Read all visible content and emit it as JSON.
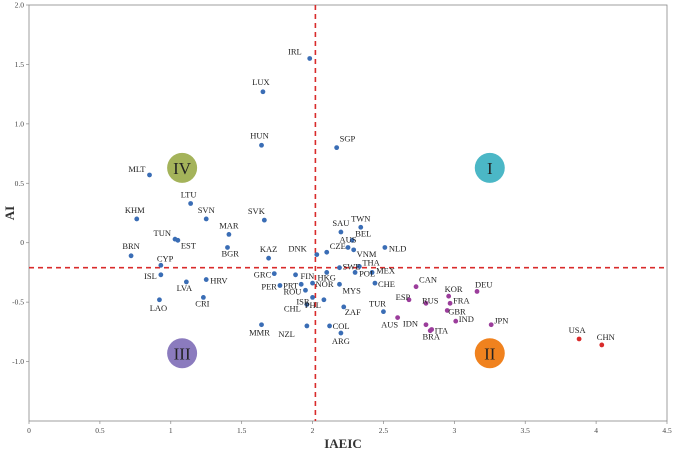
{
  "chart_data": {
    "type": "scatter",
    "title": "",
    "xlabel": "IAEIC",
    "ylabel": "AI",
    "xlim": [
      0,
      4.5
    ],
    "ylim": [
      -1.5,
      2.0
    ],
    "xticks": [
      "0",
      "0.5",
      "1",
      "1.5",
      "2",
      "2.5",
      "3",
      "3.5",
      "4",
      "4.5"
    ],
    "yticks": [
      "-1.0",
      "-0.5",
      "0",
      "0.5",
      "1.0",
      "1.5",
      "2.0"
    ],
    "xtick_values": [
      0,
      0.5,
      1,
      1.5,
      2,
      2.5,
      3,
      3.5,
      4,
      4.5
    ],
    "ytick_values": [
      -1.0,
      -0.5,
      0,
      0.5,
      1.0,
      1.5,
      2.0
    ],
    "grid": false,
    "reference_lines": {
      "x": 2.02,
      "y": -0.21
    },
    "quadrants": [
      {
        "label": "I",
        "x": 3.25,
        "y": 0.63,
        "color": "#4bb7c6"
      },
      {
        "label": "II",
        "x": 3.25,
        "y": -0.93,
        "color": "#f0821e"
      },
      {
        "label": "III",
        "x": 1.08,
        "y": -0.93,
        "color": "#8b7bbe"
      },
      {
        "label": "IV",
        "x": 1.08,
        "y": 0.63,
        "color": "#a4b35a"
      }
    ],
    "colors": {
      "blue": "#3a6db5",
      "purple": "#9b3d9b",
      "red": "#d92b2b",
      "dashed": "#d92b2b"
    },
    "points": [
      {
        "label": "IRL",
        "x": 1.98,
        "y": 1.55,
        "color": "blue"
      },
      {
        "label": "LUX",
        "x": 1.65,
        "y": 1.27,
        "color": "blue"
      },
      {
        "label": "HUN",
        "x": 1.64,
        "y": 0.82,
        "color": "blue"
      },
      {
        "label": "SGP",
        "x": 2.17,
        "y": 0.8,
        "color": "blue"
      },
      {
        "label": "MLT",
        "x": 0.85,
        "y": 0.57,
        "color": "blue"
      },
      {
        "label": "LTU",
        "x": 1.14,
        "y": 0.33,
        "color": "blue"
      },
      {
        "label": "KHM",
        "x": 0.76,
        "y": 0.2,
        "color": "blue"
      },
      {
        "label": "SVN",
        "x": 1.25,
        "y": 0.2,
        "color": "blue"
      },
      {
        "label": "SVK",
        "x": 1.66,
        "y": 0.19,
        "color": "blue"
      },
      {
        "label": "MAR",
        "x": 1.41,
        "y": 0.07,
        "color": "blue"
      },
      {
        "label": "TUN",
        "x": 1.03,
        "y": 0.03,
        "color": "blue"
      },
      {
        "label": "EST",
        "x": 1.05,
        "y": 0.02,
        "color": "blue"
      },
      {
        "label": "BGR",
        "x": 1.4,
        "y": -0.04,
        "color": "blue"
      },
      {
        "label": "BRN",
        "x": 0.72,
        "y": -0.11,
        "color": "blue"
      },
      {
        "label": "KAZ",
        "x": 1.69,
        "y": -0.13,
        "color": "blue"
      },
      {
        "label": "CYP",
        "x": 0.93,
        "y": -0.19,
        "color": "blue"
      },
      {
        "label": "ISL",
        "x": 0.93,
        "y": -0.27,
        "color": "blue"
      },
      {
        "label": "GRC",
        "x": 1.73,
        "y": -0.26,
        "color": "blue"
      },
      {
        "label": "FIN",
        "x": 1.88,
        "y": -0.27,
        "color": "blue"
      },
      {
        "label": "LVA",
        "x": 1.11,
        "y": -0.33,
        "color": "blue"
      },
      {
        "label": "HRV",
        "x": 1.25,
        "y": -0.31,
        "color": "blue"
      },
      {
        "label": "PER",
        "x": 1.77,
        "y": -0.36,
        "color": "blue"
      },
      {
        "label": "PRT",
        "x": 1.92,
        "y": -0.35,
        "color": "blue"
      },
      {
        "label": "NOR",
        "x": 2.0,
        "y": -0.34,
        "color": "blue"
      },
      {
        "label": "ROU",
        "x": 1.95,
        "y": -0.4,
        "color": "blue"
      },
      {
        "label": "ISR",
        "x": 2.0,
        "y": -0.46,
        "color": "blue"
      },
      {
        "label": "CRI",
        "x": 1.23,
        "y": -0.46,
        "color": "blue"
      },
      {
        "label": "LAO",
        "x": 0.92,
        "y": -0.48,
        "color": "blue"
      },
      {
        "label": "CHL",
        "x": 1.96,
        "y": -0.52,
        "color": "blue"
      },
      {
        "label": "MMR",
        "x": 1.64,
        "y": -0.69,
        "color": "blue"
      },
      {
        "label": "NZL",
        "x": 1.96,
        "y": -0.7,
        "color": "blue"
      },
      {
        "label": "COL",
        "x": 2.12,
        "y": -0.7,
        "color": "blue"
      },
      {
        "label": "ARG",
        "x": 2.2,
        "y": -0.76,
        "color": "blue"
      },
      {
        "label": "PHL",
        "x": 2.08,
        "y": -0.48,
        "color": "blue"
      },
      {
        "label": "ZAF",
        "x": 2.22,
        "y": -0.54,
        "color": "blue"
      },
      {
        "label": "DNK",
        "x": 2.03,
        "y": -0.1,
        "color": "blue"
      },
      {
        "label": "CZE",
        "x": 2.1,
        "y": -0.08,
        "color": "blue"
      },
      {
        "label": "SAU",
        "x": 2.2,
        "y": 0.09,
        "color": "blue"
      },
      {
        "label": "TWN",
        "x": 2.34,
        "y": 0.13,
        "color": "blue"
      },
      {
        "label": "AUS",
        "x": 2.25,
        "y": -0.04,
        "color": "blue"
      },
      {
        "label": "BEL",
        "x": 2.28,
        "y": 0.02,
        "color": "blue"
      },
      {
        "label": "VNM",
        "x": 2.29,
        "y": -0.06,
        "color": "blue"
      },
      {
        "label": "NLD",
        "x": 2.51,
        "y": -0.04,
        "color": "blue"
      },
      {
        "label": "SWE",
        "x": 2.19,
        "y": -0.21,
        "color": "blue"
      },
      {
        "label": "THA",
        "x": 2.33,
        "y": -0.2,
        "color": "blue"
      },
      {
        "label": "HKG",
        "x": 2.1,
        "y": -0.25,
        "color": "blue"
      },
      {
        "label": "POL",
        "x": 2.3,
        "y": -0.25,
        "color": "blue"
      },
      {
        "label": "MEX",
        "x": 2.42,
        "y": -0.25,
        "color": "blue"
      },
      {
        "label": "CHE",
        "x": 2.44,
        "y": -0.34,
        "color": "blue"
      },
      {
        "label": "MYS",
        "x": 2.19,
        "y": -0.35,
        "color": "blue"
      },
      {
        "label": "TUR",
        "x": 2.5,
        "y": -0.58,
        "color": "blue"
      },
      {
        "label": "CAN",
        "x": 2.73,
        "y": -0.37,
        "color": "purple"
      },
      {
        "label": "ESP",
        "x": 2.68,
        "y": -0.48,
        "color": "purple"
      },
      {
        "label": "RUS",
        "x": 2.8,
        "y": -0.51,
        "color": "purple"
      },
      {
        "label": "KOR",
        "x": 2.96,
        "y": -0.45,
        "color": "purple"
      },
      {
        "label": "FRA",
        "x": 2.97,
        "y": -0.51,
        "color": "purple"
      },
      {
        "label": "DEU",
        "x": 3.16,
        "y": -0.41,
        "color": "purple"
      },
      {
        "label": "GBR",
        "x": 2.95,
        "y": -0.57,
        "color": "purple"
      },
      {
        "label": "IDN",
        "x": 2.8,
        "y": -0.69,
        "color": "purple"
      },
      {
        "label": "ITA",
        "x": 2.84,
        "y": -0.73,
        "color": "purple"
      },
      {
        "label": "IND",
        "x": 3.01,
        "y": -0.66,
        "color": "purple"
      },
      {
        "label": "AUS",
        "x": 2.6,
        "y": -0.63,
        "color": "purple"
      },
      {
        "label": "BRA",
        "x": 2.83,
        "y": -0.74,
        "color": "purple"
      },
      {
        "label": "JPN",
        "x": 3.26,
        "y": -0.69,
        "color": "purple"
      },
      {
        "label": "USA",
        "x": 3.88,
        "y": -0.81,
        "color": "red"
      },
      {
        "label": "CHN",
        "x": 4.04,
        "y": -0.86,
        "color": "red"
      }
    ]
  }
}
